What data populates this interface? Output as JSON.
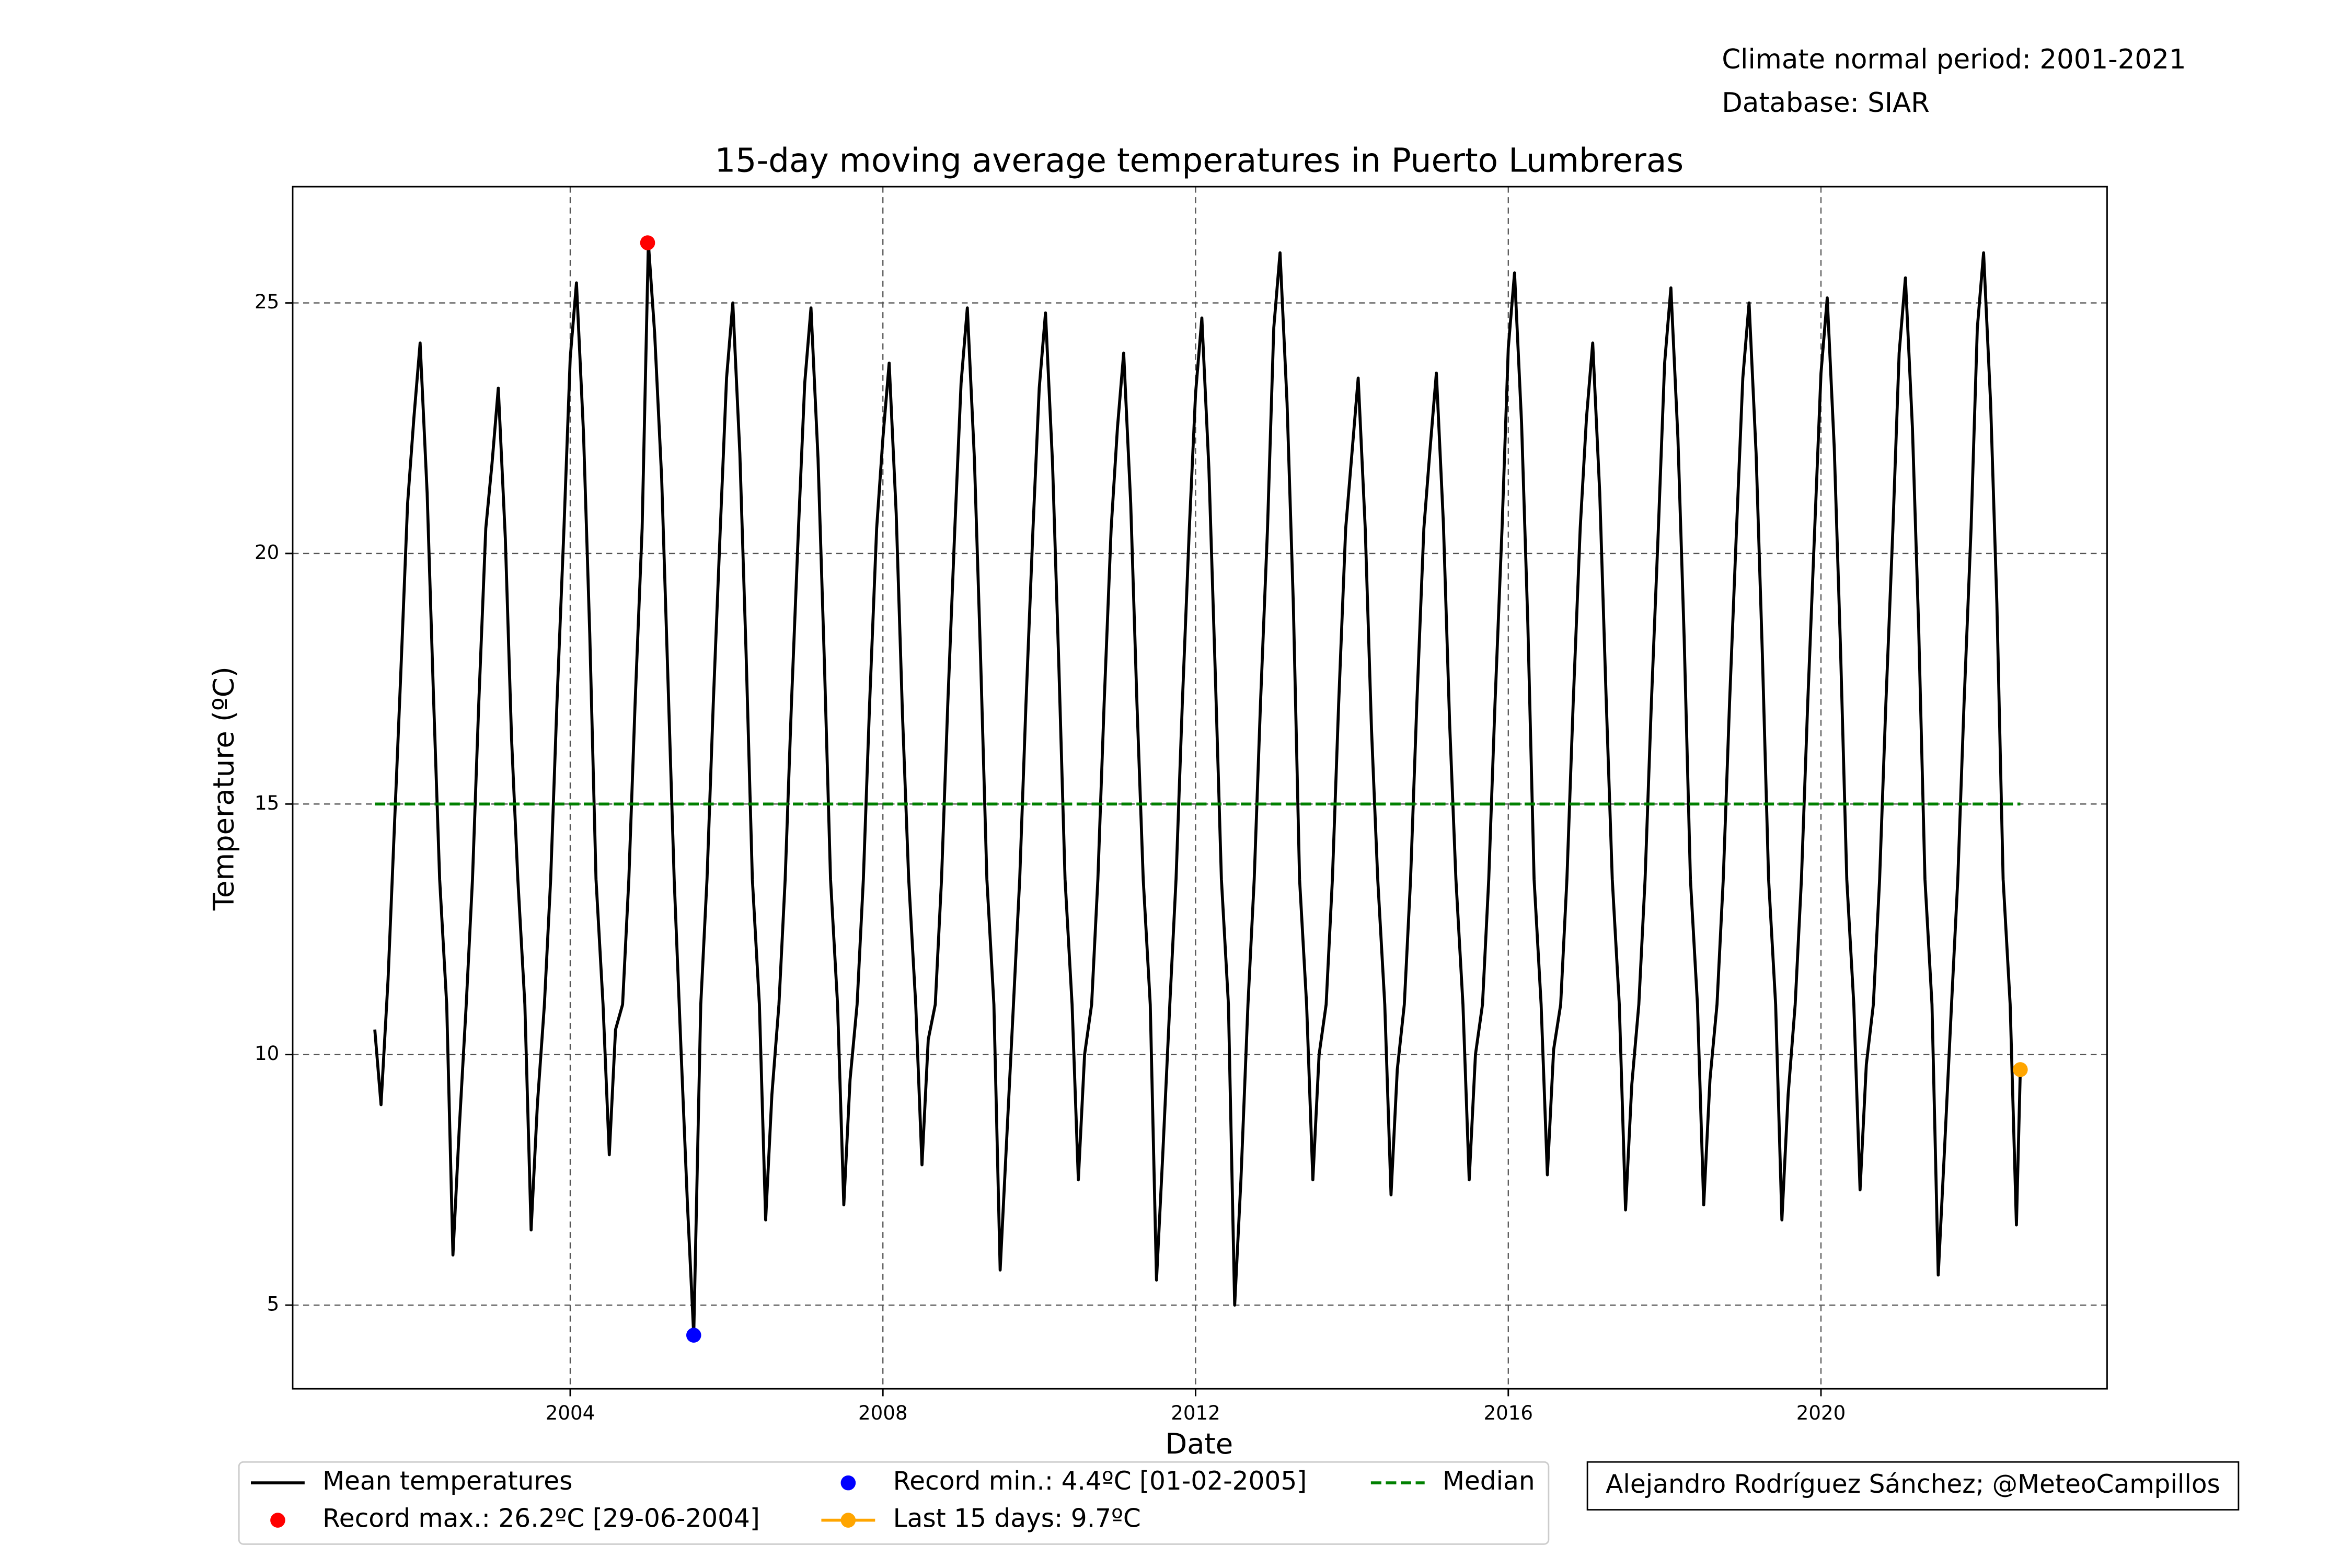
{
  "chart_data": {
    "type": "line",
    "title": "15-day moving average temperatures in Puerto Lumbreras",
    "xlabel": "Date",
    "ylabel": "Temperature (ºC)",
    "annotations": [
      "Climate normal period: 2001-2021",
      "Database: SIAR"
    ],
    "credit": "Alejandro Rodríguez Sánchez; @MeteoCampillos",
    "xlim": [
      2000.45,
      2023.66
    ],
    "ylim": [
      3.33,
      27.32
    ],
    "xticks": [
      2004,
      2008,
      2012,
      2016,
      2020
    ],
    "yticks": [
      5,
      10,
      15,
      20,
      25
    ],
    "grid": true,
    "legend": "below",
    "series": [
      {
        "name": "Mean temperatures",
        "color": "#000000",
        "x": [
          2001.5,
          2001.58,
          2001.67,
          2001.75,
          2001.83,
          2001.92,
          2002.0,
          2002.08,
          2002.17,
          2002.25,
          2002.33,
          2002.42,
          2002.5,
          2002.58,
          2002.67,
          2002.75,
          2002.83,
          2002.92,
          2003.0,
          2003.08,
          2003.17,
          2003.25,
          2003.33,
          2003.42,
          2003.5,
          2003.58,
          2003.67,
          2003.75,
          2003.83,
          2003.92,
          2004.0,
          2004.08,
          2004.17,
          2004.25,
          2004.33,
          2004.42,
          2004.5,
          2004.58,
          2004.67,
          2004.75,
          2004.83,
          2004.92,
          2005.0,
          2005.08,
          2005.17,
          2005.25,
          2005.33,
          2005.42,
          2005.5,
          2005.58,
          2005.67,
          2005.75,
          2005.83,
          2005.92,
          2006.0,
          2006.08,
          2006.17,
          2006.25,
          2006.33,
          2006.42,
          2006.5,
          2006.58,
          2006.67,
          2006.75,
          2006.83,
          2006.92,
          2007.0,
          2007.08,
          2007.17,
          2007.25,
          2007.33,
          2007.42,
          2007.5,
          2007.58,
          2007.67,
          2007.75,
          2007.83,
          2007.92,
          2008.0,
          2008.08,
          2008.17,
          2008.25,
          2008.33,
          2008.42,
          2008.5,
          2008.58,
          2008.67,
          2008.75,
          2008.83,
          2008.92,
          2009.0,
          2009.08,
          2009.17,
          2009.25,
          2009.33,
          2009.42,
          2009.5,
          2009.58,
          2009.67,
          2009.75,
          2009.83,
          2009.92,
          2010.0,
          2010.08,
          2010.17,
          2010.25,
          2010.33,
          2010.42,
          2010.5,
          2010.58,
          2010.67,
          2010.75,
          2010.83,
          2010.92,
          2011.0,
          2011.08,
          2011.17,
          2011.25,
          2011.33,
          2011.42,
          2011.5,
          2011.58,
          2011.67,
          2011.75,
          2011.83,
          2011.92,
          2012.0,
          2012.08,
          2012.17,
          2012.25,
          2012.33,
          2012.42,
          2012.5,
          2012.58,
          2012.67,
          2012.75,
          2012.83,
          2012.92,
          2013.0,
          2013.08,
          2013.17,
          2013.25,
          2013.33,
          2013.42,
          2013.5,
          2013.58,
          2013.67,
          2013.75,
          2013.83,
          2013.92,
          2014.0,
          2014.08,
          2014.17,
          2014.25,
          2014.33,
          2014.42,
          2014.5,
          2014.58,
          2014.67,
          2014.75,
          2014.83,
          2014.92,
          2015.0,
          2015.08,
          2015.17,
          2015.25,
          2015.33,
          2015.42,
          2015.5,
          2015.58,
          2015.67,
          2015.75,
          2015.83,
          2015.92,
          2016.0,
          2016.08,
          2016.17,
          2016.25,
          2016.33,
          2016.42,
          2016.5,
          2016.58,
          2016.67,
          2016.75,
          2016.83,
          2016.92,
          2017.0,
          2017.08,
          2017.17,
          2017.25,
          2017.33,
          2017.42,
          2017.5,
          2017.58,
          2017.67,
          2017.75,
          2017.83,
          2017.92,
          2018.0,
          2018.08,
          2018.17,
          2018.25,
          2018.33,
          2018.42,
          2018.5,
          2018.58,
          2018.67,
          2018.75,
          2018.83,
          2018.92,
          2019.0,
          2019.08,
          2019.17,
          2019.25,
          2019.33,
          2019.42,
          2019.5,
          2019.58,
          2019.67,
          2019.75,
          2019.83,
          2019.92,
          2020.0,
          2020.08,
          2020.17,
          2020.25,
          2020.33,
          2020.42,
          2020.5,
          2020.58,
          2020.67,
          2020.75,
          2020.83,
          2020.92,
          2021.0,
          2021.08,
          2021.17,
          2021.25,
          2021.33,
          2021.42,
          2021.5,
          2021.58,
          2021.67,
          2021.75,
          2021.83,
          2021.92,
          2022.0,
          2022.08,
          2022.17,
          2022.25,
          2022.33,
          2022.42,
          2022.5,
          2022.55
        ],
        "values": [
          10.5,
          9.0,
          11.5,
          14.5,
          17.5,
          21,
          22.7,
          24.2,
          21.2,
          17.2,
          13.5,
          11,
          6,
          8.5,
          11,
          13.5,
          17,
          20.5,
          21.8,
          23.3,
          20.3,
          16.3,
          13.5,
          11,
          6.5,
          9,
          11,
          13.5,
          17,
          20.5,
          23.9,
          25.4,
          22.4,
          18.4,
          13.5,
          11,
          8,
          10.5,
          11,
          13.5,
          17,
          20.5,
          26.2,
          24.4,
          21.5,
          17.5,
          13.5,
          10,
          7,
          4.4,
          11,
          13.5,
          17,
          20.5,
          23.5,
          25,
          22,
          18,
          13.5,
          11,
          6.7,
          9.2,
          11,
          13.5,
          17,
          20.5,
          23.4,
          24.9,
          21.9,
          17.9,
          13.5,
          11,
          7,
          9.5,
          11,
          13.5,
          17,
          20.5,
          22.3,
          23.8,
          20.8,
          16.8,
          13.5,
          11,
          7.8,
          10.3,
          11,
          13.5,
          17,
          20.5,
          23.4,
          24.9,
          21.9,
          17.9,
          13.5,
          11,
          5.7,
          8.2,
          11,
          13.5,
          17,
          20.5,
          23.3,
          24.8,
          21.8,
          17.8,
          13.5,
          11,
          7.5,
          10,
          11,
          13.5,
          17,
          20.5,
          22.5,
          24,
          21,
          17,
          13.5,
          11,
          5.5,
          8,
          11,
          13.5,
          17,
          20.5,
          23.2,
          24.7,
          21.7,
          17.7,
          13.5,
          11,
          5,
          7.5,
          11,
          13.5,
          17,
          20.5,
          24.5,
          26,
          23,
          19,
          13.5,
          11,
          7.5,
          10,
          11,
          13.5,
          17,
          20.5,
          22,
          23.5,
          20.5,
          16.5,
          13.5,
          11,
          7.2,
          9.7,
          11,
          13.5,
          17,
          20.5,
          22.1,
          23.6,
          20.6,
          16.6,
          13.5,
          11,
          7.5,
          10,
          11,
          13.5,
          17,
          20.5,
          24.1,
          25.6,
          22.6,
          18.6,
          13.5,
          11,
          7.6,
          10.1,
          11,
          13.5,
          17,
          20.5,
          22.7,
          24.2,
          21.2,
          17.2,
          13.5,
          11,
          6.9,
          9.4,
          11,
          13.5,
          17,
          20.5,
          23.8,
          25.3,
          22.3,
          18.3,
          13.5,
          11,
          7,
          9.5,
          11,
          13.5,
          17,
          20.5,
          23.5,
          25,
          22,
          18,
          13.5,
          11,
          6.7,
          9.2,
          11,
          13.5,
          17,
          20.5,
          23.6,
          25.1,
          22.1,
          18.1,
          13.5,
          11,
          7.3,
          9.8,
          11,
          13.5,
          17,
          20.5,
          24,
          25.5,
          22.5,
          18.5,
          13.5,
          11,
          5.6,
          8.1,
          11,
          13.5,
          17,
          20.5,
          24.5,
          26,
          23,
          19,
          13.5,
          11,
          6.6,
          9.7
        ]
      }
    ],
    "markers": [
      {
        "name": "Record max.: 26.2ºC [29-06-2004]",
        "color": "#ff0000",
        "x": 2004.99,
        "value": 26.2,
        "line": false
      },
      {
        "name": "Record min.: 4.4ºC [01-02-2005]",
        "color": "#0000ff",
        "x": 2005.58,
        "value": 4.4,
        "line": false
      },
      {
        "name": "Last 15 days: 9.7ºC",
        "color": "#ffa500",
        "x": 2022.55,
        "value": 9.7,
        "line": true
      }
    ],
    "median": {
      "name": "Median",
      "color": "#008000",
      "value": 15,
      "x": [
        2001.5,
        2022.55
      ]
    }
  }
}
